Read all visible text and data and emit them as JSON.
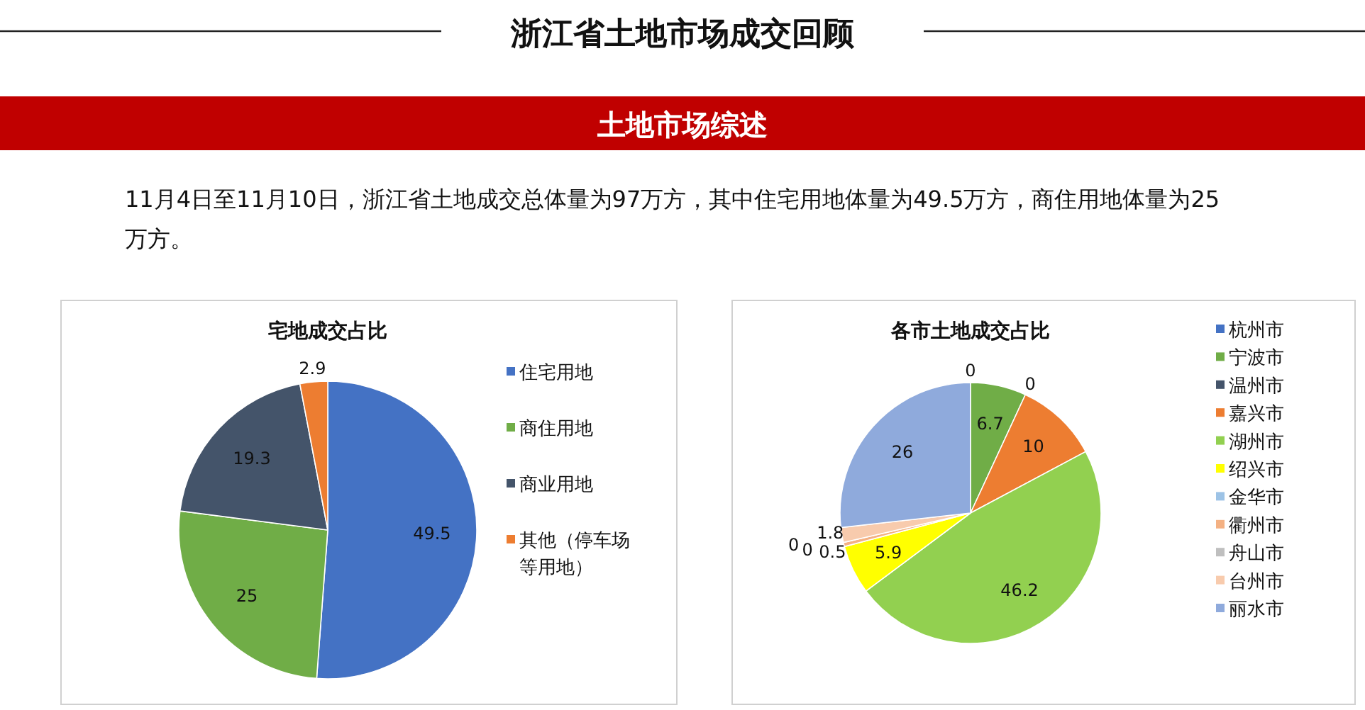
{
  "chart_data": [
    {
      "type": "other",
      "title": "浙江省土地市场成交回顾",
      "subtitle": "土地市场综述",
      "annotations": [
        "11月4日至11月10日，浙江省土地成交总体量为97万方，其中住宅用地体量为49.5万方，商住用地体量为25万方。"
      ]
    },
    {
      "type": "pie",
      "title": "宅地成交占比",
      "categories": [
        "住宅用地",
        "商住用地",
        "商业用地",
        "其他（停车场等用地）"
      ],
      "values": [
        49.5,
        25,
        19.3,
        2.9
      ],
      "colors": [
        "#4472c4",
        "#70ad47",
        "#44546a",
        "#ed7d31"
      ],
      "data_labels": true,
      "legend": "right"
    },
    {
      "type": "pie",
      "title": "各市土地成交占比",
      "categories": [
        "杭州市",
        "宁波市",
        "温州市",
        "嘉兴市",
        "湖州市",
        "绍兴市",
        "金华市",
        "衢州市",
        "舟山市",
        "台州市",
        "丽水市"
      ],
      "values": [
        0,
        6.7,
        0,
        10,
        46.2,
        5.9,
        0,
        0.5,
        0,
        1.8,
        26
      ],
      "colors": [
        "#4472c4",
        "#70ad47",
        "#44546a",
        "#ed7d31",
        "#92d050",
        "#ffff00",
        "#9dc3e6",
        "#f4b183",
        "#bfbfbf",
        "#f8cbad",
        "#8faadc"
      ],
      "data_labels": true,
      "value_labels": [
        "0",
        "6.7",
        "0",
        "10",
        "46.2",
        "5.9",
        "0",
        "0.5",
        "0",
        "1.8",
        "26"
      ],
      "legend": "right"
    }
  ]
}
